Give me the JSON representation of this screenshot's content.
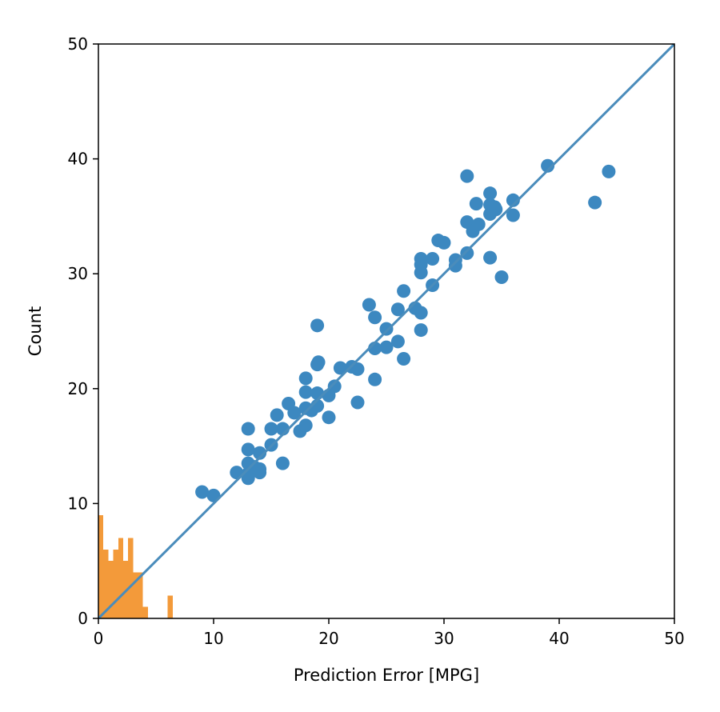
{
  "chart_data": {
    "type": "scatter",
    "title": "",
    "xlabel": "Prediction Error [MPG]",
    "ylabel": "Count",
    "xlim": [
      0,
      50
    ],
    "ylim": [
      0,
      50
    ],
    "xticks": [
      0,
      10,
      20,
      30,
      40,
      50
    ],
    "yticks": [
      0,
      10,
      20,
      30,
      40,
      50
    ],
    "grid": false,
    "colors": {
      "scatter": "#3c88c0",
      "identity_line": "#4a8cbb",
      "histogram": "#f39a3a"
    },
    "scatter_points": [
      [
        9.0,
        11.0
      ],
      [
        10.0,
        10.7
      ],
      [
        12.0,
        12.7
      ],
      [
        13.0,
        16.5
      ],
      [
        13.0,
        14.7
      ],
      [
        13.0,
        13.5
      ],
      [
        13.0,
        12.6
      ],
      [
        13.0,
        12.2
      ],
      [
        13.5,
        13.2
      ],
      [
        14.0,
        14.4
      ],
      [
        14.0,
        13.0
      ],
      [
        14.0,
        12.7
      ],
      [
        15.0,
        15.1
      ],
      [
        15.0,
        16.5
      ],
      [
        15.5,
        17.7
      ],
      [
        16.0,
        16.5
      ],
      [
        16.0,
        13.5
      ],
      [
        16.5,
        18.7
      ],
      [
        17.0,
        17.9
      ],
      [
        17.5,
        16.3
      ],
      [
        18.0,
        16.8
      ],
      [
        18.0,
        18.3
      ],
      [
        18.0,
        19.7
      ],
      [
        18.0,
        20.9
      ],
      [
        18.5,
        18.1
      ],
      [
        19.0,
        18.5
      ],
      [
        19.0,
        19.6
      ],
      [
        19.0,
        22.1
      ],
      [
        19.1,
        22.3
      ],
      [
        19.0,
        25.5
      ],
      [
        20.0,
        17.5
      ],
      [
        20.0,
        19.4
      ],
      [
        20.5,
        20.2
      ],
      [
        21.0,
        21.8
      ],
      [
        22.0,
        21.9
      ],
      [
        22.5,
        21.7
      ],
      [
        22.5,
        18.8
      ],
      [
        23.5,
        27.3
      ],
      [
        24.0,
        20.8
      ],
      [
        24.0,
        23.5
      ],
      [
        24.0,
        26.2
      ],
      [
        25.0,
        23.6
      ],
      [
        25.0,
        25.2
      ],
      [
        26.0,
        24.1
      ],
      [
        26.0,
        26.9
      ],
      [
        26.5,
        28.5
      ],
      [
        26.5,
        22.6
      ],
      [
        27.5,
        27.0
      ],
      [
        28.0,
        26.6
      ],
      [
        28.0,
        25.1
      ],
      [
        28.0,
        30.1
      ],
      [
        28.0,
        30.8
      ],
      [
        28.0,
        31.3
      ],
      [
        29.0,
        29.0
      ],
      [
        29.0,
        31.3
      ],
      [
        29.5,
        32.9
      ],
      [
        30.0,
        32.7
      ],
      [
        31.0,
        30.7
      ],
      [
        31.0,
        31.2
      ],
      [
        32.0,
        31.8
      ],
      [
        32.0,
        34.5
      ],
      [
        32.0,
        38.5
      ],
      [
        32.5,
        33.7
      ],
      [
        32.8,
        36.1
      ],
      [
        33.0,
        34.3
      ],
      [
        34.0,
        37.0
      ],
      [
        34.0,
        36.0
      ],
      [
        34.0,
        35.2
      ],
      [
        34.0,
        31.4
      ],
      [
        34.5,
        35.6
      ],
      [
        34.4,
        35.8
      ],
      [
        35.0,
        29.7
      ],
      [
        36.0,
        36.4
      ],
      [
        36.0,
        35.1
      ],
      [
        39.0,
        39.4
      ],
      [
        43.1,
        36.2
      ],
      [
        44.3,
        38.9
      ]
    ],
    "identity_line": [
      [
        0,
        0
      ],
      [
        50,
        50
      ]
    ],
    "histogram": {
      "bin_edges": [
        0.0,
        0.43,
        0.86,
        1.29,
        1.72,
        2.15,
        2.58,
        3.01,
        3.44,
        3.87,
        4.3,
        4.73,
        5.16,
        5.59,
        6.02,
        6.45
      ],
      "counts": [
        9,
        6,
        5,
        6,
        7,
        5,
        7,
        4,
        4,
        1,
        0,
        0,
        0,
        0,
        2
      ]
    }
  }
}
